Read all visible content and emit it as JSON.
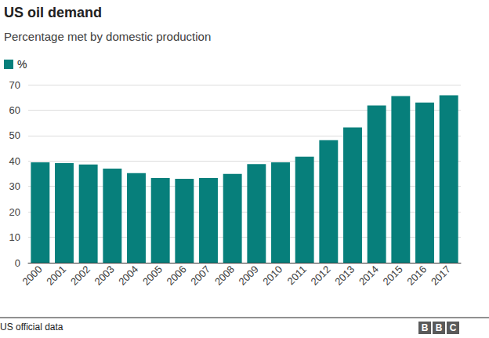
{
  "chart_data": {
    "type": "bar",
    "title": "US oil demand",
    "subtitle": "Percentage met by domestic production",
    "categories": [
      "2000",
      "2001",
      "2002",
      "2003",
      "2004",
      "2005",
      "2006",
      "2007",
      "2008",
      "2009",
      "2010",
      "2011",
      "2012",
      "2013",
      "2014",
      "2015",
      "2016",
      "2017"
    ],
    "series": [
      {
        "name": "%",
        "color": "#077f7b",
        "values": [
          39.5,
          39.2,
          38.6,
          37.0,
          35.2,
          33.3,
          33.0,
          33.3,
          34.9,
          38.8,
          39.5,
          41.7,
          48.2,
          53.2,
          61.8,
          65.5,
          63.0,
          65.8
        ]
      }
    ],
    "ylim": [
      0,
      70
    ],
    "yticks": [
      0,
      10,
      20,
      30,
      40,
      50,
      60,
      70
    ],
    "grid": true,
    "legend": "top-left",
    "source": "US official data",
    "logo": "BBC"
  }
}
